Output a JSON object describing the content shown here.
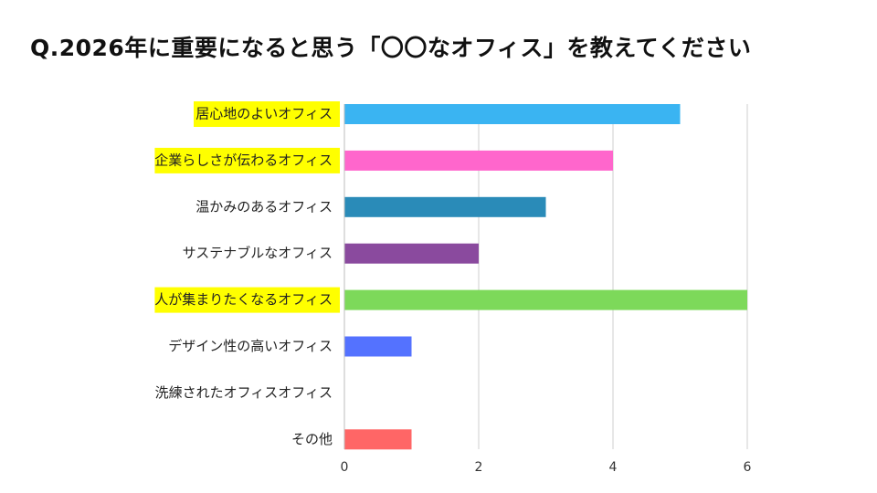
{
  "title": "Q.2026年に重要になると思う「〇〇なオフィス」を教えてください",
  "chart_data": {
    "type": "bar",
    "orientation": "horizontal",
    "categories": [
      "居心地のよいオフィス",
      "企業らしさが伝わるオフィス",
      "温かみのあるオフィス",
      "サステナブルなオフィス",
      "人が集まりたくなるオフィス",
      "デザイン性の高いオフィス",
      "洗練されたオフィスオフィス",
      "その他"
    ],
    "values": [
      5,
      4,
      3,
      2,
      6,
      1,
      0,
      1
    ],
    "bar_colors": [
      "#3ab4f2",
      "#ff66cc",
      "#2a8bb8",
      "#8a4a9e",
      "#7dd95a",
      "#5472ff",
      "#cccccc",
      "#ff6666"
    ],
    "highlighted_categories": [
      0,
      1,
      4
    ],
    "highlight_color": "#ffff00",
    "xlim": [
      0,
      6
    ],
    "xticks": [
      0,
      2,
      4,
      6
    ],
    "grid": true,
    "xlabel": "",
    "ylabel": ""
  }
}
